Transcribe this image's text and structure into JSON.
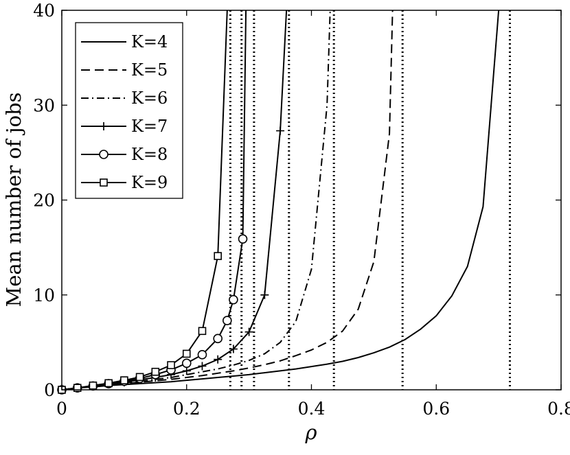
{
  "chart_data": {
    "type": "line",
    "title": "",
    "xlabel": "ρ",
    "ylabel": "Mean number of jobs",
    "xlim": [
      0,
      0.8
    ],
    "ylim": [
      0,
      40
    ],
    "xticks": [
      0,
      0.2,
      0.4,
      0.6,
      0.8
    ],
    "xtick_labels": [
      "0",
      "0.2",
      "0.4",
      "0.6",
      "0.8"
    ],
    "yticks": [
      0,
      10,
      20,
      30,
      40
    ],
    "ytick_labels": [
      "0",
      "10",
      "20",
      "30",
      "40"
    ],
    "grid": false,
    "legend_position": "top-left",
    "vertical_lines": [
      0.27,
      0.288,
      0.308,
      0.364,
      0.436,
      0.546,
      0.718
    ],
    "series": [
      {
        "name": "K=4",
        "dash": "solid",
        "marker": "none",
        "x": [
          0,
          0.025,
          0.05,
          0.075,
          0.1,
          0.125,
          0.15,
          0.175,
          0.2,
          0.225,
          0.25,
          0.275,
          0.3,
          0.325,
          0.35,
          0.375,
          0.4,
          0.425,
          0.45,
          0.475,
          0.5,
          0.525,
          0.55,
          0.575,
          0.6,
          0.625,
          0.65,
          0.675,
          0.7
        ],
        "y": [
          0,
          0.2,
          0.3,
          0.45,
          0.55,
          0.65,
          0.75,
          0.85,
          1.0,
          1.15,
          1.3,
          1.45,
          1.6,
          1.8,
          2.0,
          2.2,
          2.45,
          2.7,
          3.0,
          3.4,
          3.9,
          4.5,
          5.3,
          6.4,
          7.8,
          9.9,
          13.0,
          19.3,
          40
        ]
      },
      {
        "name": "K=5",
        "dash": "dashed",
        "marker": "none",
        "x": [
          0,
          0.025,
          0.05,
          0.075,
          0.1,
          0.125,
          0.15,
          0.175,
          0.2,
          0.225,
          0.25,
          0.275,
          0.3,
          0.325,
          0.35,
          0.375,
          0.4,
          0.425,
          0.45,
          0.475,
          0.5,
          0.525,
          0.53
        ],
        "y": [
          0,
          0.2,
          0.35,
          0.5,
          0.65,
          0.8,
          0.95,
          1.1,
          1.3,
          1.5,
          1.75,
          2.0,
          2.3,
          2.65,
          3.05,
          3.6,
          4.2,
          5.0,
          6.2,
          8.5,
          13.5,
          27.0,
          40
        ]
      },
      {
        "name": "K=6",
        "dash": "dashdot",
        "marker": "none",
        "x": [
          0,
          0.025,
          0.05,
          0.075,
          0.1,
          0.125,
          0.15,
          0.175,
          0.2,
          0.225,
          0.25,
          0.275,
          0.3,
          0.325,
          0.35,
          0.375,
          0.4,
          0.425,
          0.43
        ],
        "y": [
          0,
          0.2,
          0.4,
          0.55,
          0.7,
          0.9,
          1.1,
          1.3,
          1.6,
          1.9,
          2.2,
          2.6,
          3.1,
          3.8,
          5.0,
          7.2,
          12.7,
          30.0,
          40
        ]
      },
      {
        "name": "K=7",
        "dash": "solid",
        "marker": "plus",
        "x": [
          0,
          0.025,
          0.05,
          0.075,
          0.1,
          0.125,
          0.15,
          0.175,
          0.2,
          0.225,
          0.25,
          0.275,
          0.3,
          0.325,
          0.35,
          0.36
        ],
        "y": [
          0,
          0.2,
          0.4,
          0.6,
          0.8,
          1.05,
          1.3,
          1.6,
          2.0,
          2.5,
          3.2,
          4.3,
          6.1,
          10.0,
          27.3,
          40
        ]
      },
      {
        "name": "K=8",
        "dash": "solid",
        "marker": "circle",
        "x": [
          0,
          0.025,
          0.05,
          0.075,
          0.1,
          0.125,
          0.15,
          0.175,
          0.2,
          0.225,
          0.25,
          0.265,
          0.275,
          0.29,
          0.295
        ],
        "y": [
          0,
          0.2,
          0.4,
          0.65,
          0.9,
          1.2,
          1.6,
          2.1,
          2.8,
          3.7,
          5.4,
          7.3,
          9.5,
          15.9,
          40
        ]
      },
      {
        "name": "K=9",
        "dash": "solid",
        "marker": "square",
        "x": [
          0,
          0.025,
          0.05,
          0.075,
          0.1,
          0.125,
          0.15,
          0.175,
          0.2,
          0.225,
          0.25,
          0.265
        ],
        "y": [
          0,
          0.2,
          0.45,
          0.7,
          1.0,
          1.35,
          1.9,
          2.6,
          3.8,
          6.2,
          14.1,
          40
        ]
      }
    ]
  }
}
